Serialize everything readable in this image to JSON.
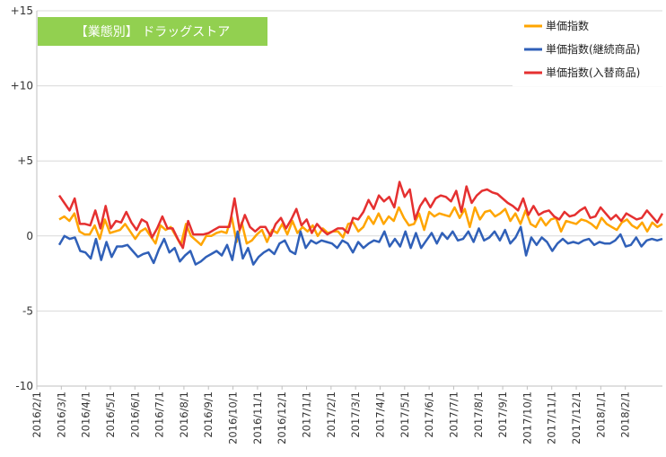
{
  "chart_data": {
    "type": "line",
    "title": "【業態別】 ドラッグストア",
    "title_bg_color": "#92d050",
    "ylim": [
      -10,
      15
    ],
    "y_ticks": [
      {
        "value": 15,
        "label": "+15"
      },
      {
        "value": 10,
        "label": "+10"
      },
      {
        "value": 5,
        "label": "+5"
      },
      {
        "value": 0,
        "label": "0"
      },
      {
        "value": -5,
        "label": "-5"
      },
      {
        "value": -10,
        "label": "-10"
      }
    ],
    "x_ticks": [
      "2016/2/1",
      "2016/3/1",
      "2016/4/1",
      "2016/5/1",
      "2016/6/1",
      "2016/7/1",
      "2016/8/1",
      "2016/9/1",
      "2016/10/1",
      "2016/11/1",
      "2016/12/1",
      "2017/1/1",
      "2017/2/1",
      "2017/3/1",
      "2017/4/1",
      "2017/5/1",
      "2017/6/1",
      "2017/7/1",
      "2017/8/1",
      "2017/9/1",
      "2017/10/1",
      "2017/11/1",
      "2017/12/1",
      "2018/1/1",
      "2018/2/1"
    ],
    "grid": "horizontal",
    "legend_position": "top-right",
    "series": [
      {
        "name": "単価指数",
        "color": "#ffa500",
        "values": [
          1.1,
          1.3,
          1.0,
          1.5,
          0.3,
          0.1,
          0.1,
          0.7,
          -0.2,
          1.1,
          0.2,
          0.3,
          0.4,
          0.8,
          0.3,
          -0.2,
          0.3,
          0.5,
          0.0,
          -0.5,
          0.7,
          0.4,
          0.6,
          0.0,
          -0.6,
          0.8,
          0.0,
          -0.3,
          -0.6,
          0.0,
          0.0,
          0.2,
          0.3,
          0.2,
          1.3,
          -0.4,
          0.9,
          -0.5,
          -0.3,
          0.1,
          0.4,
          -0.4,
          0.4,
          0.2,
          0.8,
          0.1,
          1.0,
          0.2,
          0.6,
          0.3,
          0.7,
          0.0,
          0.5,
          0.2,
          0.3,
          0.3,
          -0.1,
          0.8,
          0.9,
          0.3,
          0.6,
          1.3,
          0.8,
          1.5,
          0.8,
          1.3,
          1.0,
          1.9,
          1.2,
          0.7,
          0.8,
          1.5,
          0.4,
          1.6,
          1.3,
          1.5,
          1.4,
          1.3,
          1.9,
          1.2,
          1.8,
          0.6,
          1.9,
          1.1,
          1.6,
          1.7,
          1.3,
          1.5,
          1.8,
          1.0,
          1.5,
          0.8,
          1.7,
          0.8,
          0.6,
          1.2,
          0.7,
          1.1,
          1.2,
          0.3,
          1.0,
          0.9,
          0.8,
          1.1,
          1.0,
          0.8,
          0.5,
          1.2,
          0.8,
          0.6,
          0.4,
          0.9,
          1.1,
          0.7,
          0.5,
          0.9,
          0.3,
          0.9,
          0.6,
          0.8
        ]
      },
      {
        "name": "単価指数(継続商品)",
        "color": "#3060b8",
        "values": [
          -0.6,
          0.0,
          -0.2,
          -0.1,
          -1.0,
          -1.1,
          -1.5,
          -0.2,
          -1.6,
          -0.4,
          -1.4,
          -0.7,
          -0.7,
          -0.6,
          -1.0,
          -1.4,
          -1.2,
          -1.1,
          -1.8,
          -0.9,
          -0.2,
          -1.1,
          -0.8,
          -1.7,
          -1.3,
          -1.0,
          -1.9,
          -1.7,
          -1.4,
          -1.2,
          -1.0,
          -1.3,
          -0.6,
          -1.6,
          0.3,
          -1.5,
          -0.8,
          -1.9,
          -1.4,
          -1.1,
          -0.9,
          -1.2,
          -0.5,
          -0.3,
          -1.0,
          -1.2,
          0.3,
          -0.8,
          -0.3,
          -0.5,
          -0.3,
          -0.4,
          -0.5,
          -0.8,
          -0.3,
          -0.5,
          -1.1,
          -0.4,
          -0.8,
          -0.5,
          -0.3,
          -0.4,
          0.3,
          -0.7,
          -0.2,
          -0.7,
          0.3,
          -0.8,
          0.2,
          -0.8,
          -0.3,
          0.2,
          -0.5,
          0.2,
          -0.2,
          0.3,
          -0.3,
          -0.2,
          0.3,
          -0.4,
          0.5,
          -0.3,
          -0.1,
          0.3,
          -0.3,
          0.4,
          -0.5,
          -0.1,
          0.6,
          -1.3,
          -0.1,
          -0.6,
          -0.1,
          -0.4,
          -1.0,
          -0.5,
          -0.2,
          -0.5,
          -0.4,
          -0.5,
          -0.3,
          -0.2,
          -0.6,
          -0.4,
          -0.5,
          -0.5,
          -0.3,
          0.1,
          -0.7,
          -0.6,
          -0.1,
          -0.7,
          -0.3,
          -0.2,
          -0.3,
          -0.2
        ]
      },
      {
        "name": "単価指数(入替商品)",
        "color": "#e53030",
        "values": [
          2.7,
          2.2,
          1.7,
          2.5,
          0.8,
          0.8,
          0.7,
          1.7,
          0.5,
          2.0,
          0.5,
          1.0,
          0.9,
          1.6,
          0.9,
          0.4,
          1.1,
          0.9,
          -0.1,
          0.5,
          1.3,
          0.5,
          0.5,
          -0.2,
          -0.8,
          1.0,
          0.1,
          0.1,
          0.1,
          0.2,
          0.4,
          0.6,
          0.6,
          0.6,
          2.5,
          0.4,
          1.4,
          0.6,
          0.3,
          0.6,
          0.6,
          0.0,
          0.8,
          1.2,
          0.5,
          1.1,
          1.8,
          0.7,
          1.1,
          0.2,
          0.8,
          0.4,
          0.1,
          0.3,
          0.5,
          0.5,
          0.2,
          1.2,
          1.1,
          1.6,
          2.4,
          1.8,
          2.7,
          2.3,
          2.6,
          1.9,
          3.6,
          2.6,
          3.1,
          1.1,
          2.0,
          2.5,
          1.9,
          2.5,
          2.7,
          2.6,
          2.3,
          3.0,
          1.6,
          3.3,
          2.2,
          2.7,
          3.0,
          3.1,
          2.9,
          2.8,
          2.5,
          2.2,
          2.0,
          1.7,
          2.5,
          1.4,
          2.0,
          1.4,
          1.6,
          1.7,
          1.3,
          1.1,
          1.6,
          1.3,
          1.4,
          1.7,
          1.9,
          1.2,
          1.3,
          1.9,
          1.5,
          1.1,
          1.4,
          1.0,
          1.5,
          1.3,
          1.1,
          1.2,
          1.7,
          1.3,
          0.9,
          1.5
        ]
      }
    ]
  }
}
